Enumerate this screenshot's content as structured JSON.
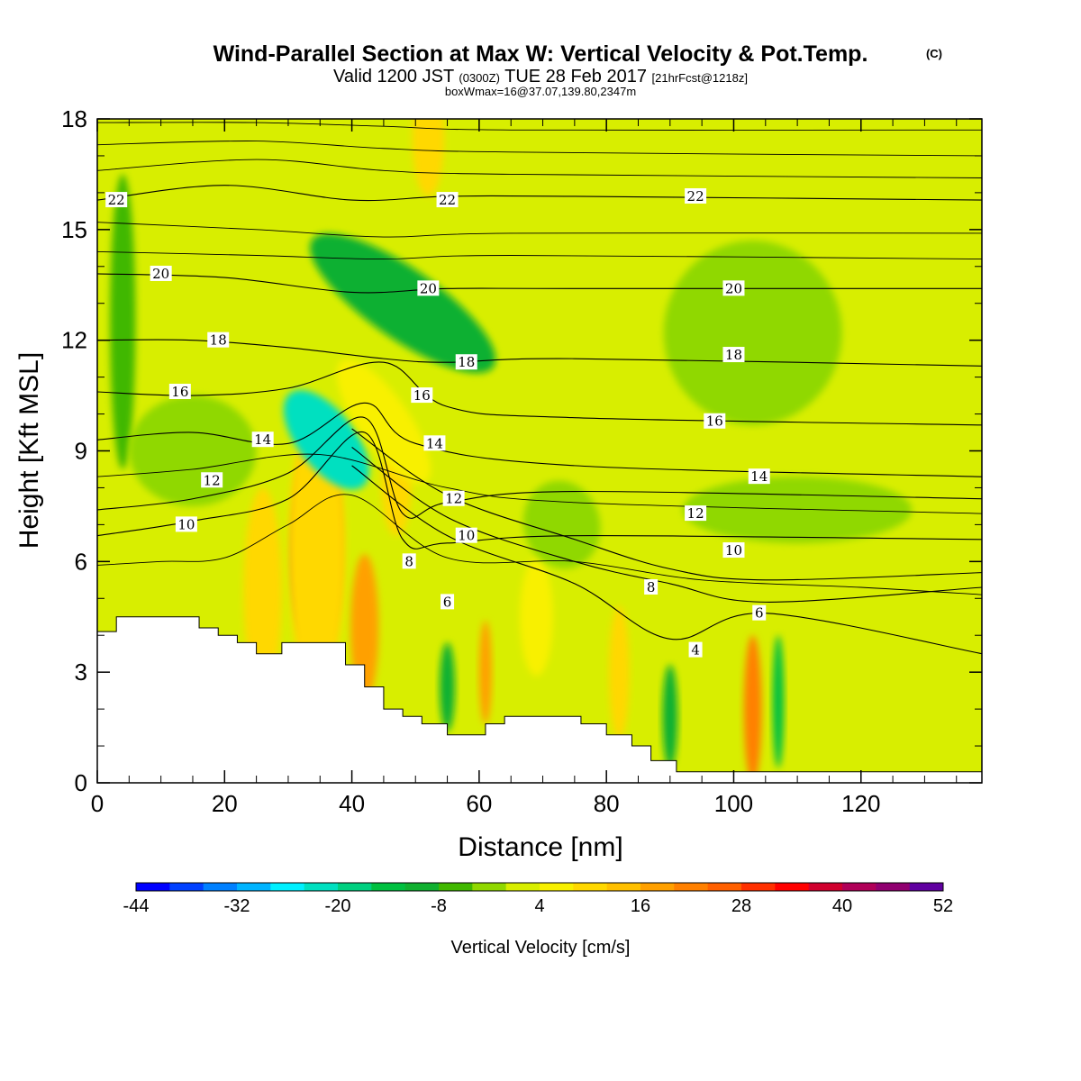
{
  "header": {
    "title_main": "Wind-Parallel Section at Max W: Vertical Velocity & Pot.Temp.",
    "title_copyright": "(C)",
    "valid_prefix": "Valid 1200 JST",
    "valid_utc": "(0300Z)",
    "valid_date": "TUE 28 Feb 2017",
    "forecast_tag": "[21hrFcst@1218z]",
    "box_info": "boxWmax=16@37.07,139.80,2347m"
  },
  "chart_data": {
    "type": "heatmap",
    "xlabel": "Distance [nm]",
    "ylabel": "Height [Kft MSL]",
    "xlim": [
      0,
      139
    ],
    "ylim": [
      0,
      18
    ],
    "x_ticks": [
      "0",
      "20",
      "40",
      "60",
      "80",
      "100",
      "120"
    ],
    "y_ticks": [
      "0",
      "3",
      "6",
      "9",
      "12",
      "15",
      "18"
    ],
    "x_tick_values": [
      0,
      20,
      40,
      60,
      80,
      100,
      120
    ],
    "y_tick_values": [
      0,
      3,
      6,
      9,
      12,
      15,
      18
    ],
    "background_color": "#d8ee00",
    "terrain_kft": [
      [
        0,
        4.1
      ],
      [
        3,
        4.1
      ],
      [
        3,
        4.5
      ],
      [
        16,
        4.5
      ],
      [
        16,
        4.2
      ],
      [
        19,
        4.2
      ],
      [
        19,
        4.0
      ],
      [
        22,
        4.0
      ],
      [
        22,
        3.8
      ],
      [
        25,
        3.8
      ],
      [
        25,
        3.5
      ],
      [
        29,
        3.5
      ],
      [
        29,
        3.8
      ],
      [
        39,
        3.8
      ],
      [
        39,
        3.2
      ],
      [
        42,
        3.2
      ],
      [
        42,
        2.6
      ],
      [
        45,
        2.6
      ],
      [
        45,
        2.0
      ],
      [
        48,
        2.0
      ],
      [
        48,
        1.8
      ],
      [
        51,
        1.8
      ],
      [
        51,
        1.6
      ],
      [
        55,
        1.6
      ],
      [
        55,
        1.3
      ],
      [
        61,
        1.3
      ],
      [
        61,
        1.6
      ],
      [
        64,
        1.6
      ],
      [
        64,
        1.8
      ],
      [
        76,
        1.8
      ],
      [
        76,
        1.6
      ],
      [
        80,
        1.6
      ],
      [
        80,
        1.3
      ],
      [
        84,
        1.3
      ],
      [
        84,
        1.0
      ],
      [
        87,
        1.0
      ],
      [
        87,
        0.6
      ],
      [
        91,
        0.6
      ],
      [
        91,
        0.3
      ],
      [
        139,
        0.3
      ]
    ],
    "w_features": [
      {
        "x": 33.5,
        "y": 6.1,
        "rx": 2.6,
        "ry": 2.2,
        "w": 50
      },
      {
        "x": 34.5,
        "y": 6.4,
        "rx": 3.6,
        "ry": 3.0,
        "w": 28
      },
      {
        "x": 34.5,
        "y": 6.3,
        "rx": 4.5,
        "ry": 3.8,
        "w": 10
      },
      {
        "x": 26,
        "y": 5.2,
        "rx": 3.0,
        "ry": 2.8,
        "w": 10
      },
      {
        "x": 42,
        "y": 4.2,
        "rx": 2.2,
        "ry": 2.0,
        "w": 16
      },
      {
        "x": 36,
        "y": 9.3,
        "rx": 4.5,
        "ry": 1.6,
        "w": -22,
        "rot": -38
      },
      {
        "x": 47,
        "y": 8.2,
        "rx": 2.4,
        "ry": 1.5,
        "w": 10
      },
      {
        "x": 45,
        "y": 9.8,
        "rx": 4.0,
        "ry": 2.0,
        "w": 4,
        "rot": -35
      },
      {
        "x": 52,
        "y": 17.5,
        "rx": 2.5,
        "ry": 1.6,
        "w": 10
      },
      {
        "x": 48,
        "y": 13.0,
        "rx": 5.5,
        "ry": 3.0,
        "w": -10,
        "rot": -55
      },
      {
        "x": 4,
        "y": 12.5,
        "rx": 2.0,
        "ry": 4.0,
        "w": -8
      },
      {
        "x": 55,
        "y": 2.6,
        "rx": 1.2,
        "ry": 1.2,
        "w": -12
      },
      {
        "x": 61,
        "y": 3.0,
        "rx": 1.0,
        "ry": 1.4,
        "w": 16
      },
      {
        "x": 69,
        "y": 4.5,
        "rx": 2.6,
        "ry": 1.6,
        "w": 4
      },
      {
        "x": 82,
        "y": 3.0,
        "rx": 1.6,
        "ry": 1.8,
        "w": 10
      },
      {
        "x": 90,
        "y": 1.8,
        "rx": 1.2,
        "ry": 1.4,
        "w": -10
      },
      {
        "x": 103,
        "y": 2.0,
        "rx": 1.4,
        "ry": 2.0,
        "w": 22
      },
      {
        "x": 107,
        "y": 2.2,
        "rx": 0.9,
        "ry": 1.8,
        "w": -16
      },
      {
        "x": 103,
        "y": 12.2,
        "rx": 14.0,
        "ry": 2.5,
        "w": -4
      },
      {
        "x": 110,
        "y": 7.4,
        "rx": 18.0,
        "ry": 0.9,
        "w": -4
      },
      {
        "x": 73,
        "y": 7.0,
        "rx": 6.0,
        "ry": 1.2,
        "w": -4,
        "rot": -15
      },
      {
        "x": 15,
        "y": 9.0,
        "rx": 10.0,
        "ry": 1.5,
        "w": -4
      }
    ],
    "theta_levels": [
      {
        "label": "4",
        "pts": [
          [
            40,
            8.6
          ],
          [
            55,
            6.7
          ],
          [
            75,
            5.4
          ],
          [
            90,
            3.9
          ],
          [
            105,
            4.6
          ],
          [
            139,
            3.5
          ]
        ]
      },
      {
        "label": "6",
        "pts": [
          [
            40,
            9.1
          ],
          [
            55,
            7.2
          ],
          [
            75,
            6.0
          ],
          [
            90,
            5.4
          ],
          [
            105,
            4.9
          ],
          [
            139,
            5.3
          ]
        ]
      },
      {
        "label": "8",
        "pts": [
          [
            40,
            9.6
          ],
          [
            55,
            7.8
          ],
          [
            75,
            6.6
          ],
          [
            90,
            5.8
          ],
          [
            105,
            5.5
          ],
          [
            139,
            5.7
          ]
        ]
      },
      {
        "label": "10",
        "pts": [
          [
            0,
            6.7
          ],
          [
            15,
            7.1
          ],
          [
            30,
            7.7
          ],
          [
            42,
            9.5
          ],
          [
            48,
            6.6
          ],
          [
            55,
            6.5
          ],
          [
            75,
            6.7
          ],
          [
            139,
            6.6
          ]
        ]
      },
      {
        "label": "12",
        "pts": [
          [
            0,
            7.4
          ],
          [
            15,
            7.7
          ],
          [
            30,
            8.4
          ],
          [
            42,
            9.9
          ],
          [
            48,
            7.3
          ],
          [
            55,
            7.6
          ],
          [
            75,
            7.9
          ],
          [
            139,
            7.7
          ]
        ]
      },
      {
        "label": "14",
        "pts": [
          [
            0,
            9.3
          ],
          [
            15,
            9.5
          ],
          [
            30,
            9.2
          ],
          [
            42,
            10.3
          ],
          [
            50,
            9.2
          ],
          [
            75,
            8.6
          ],
          [
            139,
            8.3
          ]
        ]
      },
      {
        "label": "16",
        "pts": [
          [
            0,
            10.6
          ],
          [
            15,
            10.5
          ],
          [
            30,
            10.7
          ],
          [
            45,
            11.4
          ],
          [
            55,
            10.2
          ],
          [
            75,
            9.9
          ],
          [
            139,
            9.7
          ]
        ]
      },
      {
        "label": "18",
        "pts": [
          [
            0,
            12.0
          ],
          [
            15,
            12.0
          ],
          [
            30,
            11.8
          ],
          [
            45,
            11.5
          ],
          [
            55,
            11.4
          ],
          [
            75,
            11.5
          ],
          [
            139,
            11.3
          ]
        ]
      },
      {
        "label": "20",
        "pts": [
          [
            0,
            13.8
          ],
          [
            20,
            13.7
          ],
          [
            40,
            13.3
          ],
          [
            55,
            13.4
          ],
          [
            75,
            13.4
          ],
          [
            139,
            13.4
          ]
        ]
      },
      {
        "label": "22",
        "pts": [
          [
            0,
            15.8
          ],
          [
            20,
            16.2
          ],
          [
            40,
            15.8
          ],
          [
            55,
            15.9
          ],
          [
            75,
            15.9
          ],
          [
            139,
            15.8
          ]
        ]
      }
    ],
    "theta_thin_levels": [
      {
        "pts": [
          [
            0,
            5.9
          ],
          [
            10,
            6.0
          ],
          [
            20,
            6.1
          ],
          [
            30,
            7.0
          ],
          [
            40,
            7.8
          ],
          [
            55,
            6.1
          ],
          [
            75,
            6.0
          ],
          [
            95,
            5.5
          ],
          [
            120,
            5.3
          ],
          [
            139,
            5.1
          ]
        ]
      },
      {
        "pts": [
          [
            0,
            8.3
          ],
          [
            15,
            8.5
          ],
          [
            35,
            8.9
          ],
          [
            55,
            8.0
          ],
          [
            75,
            7.6
          ],
          [
            139,
            7.3
          ]
        ]
      },
      {
        "pts": [
          [
            0,
            14.4
          ],
          [
            25,
            14.3
          ],
          [
            45,
            14.2
          ],
          [
            65,
            14.3
          ],
          [
            139,
            14.2
          ]
        ]
      },
      {
        "pts": [
          [
            0,
            15.2
          ],
          [
            25,
            15.0
          ],
          [
            45,
            14.8
          ],
          [
            65,
            14.9
          ],
          [
            139,
            14.9
          ]
        ]
      },
      {
        "pts": [
          [
            0,
            16.6
          ],
          [
            25,
            16.9
          ],
          [
            45,
            16.6
          ],
          [
            65,
            16.5
          ],
          [
            139,
            16.4
          ]
        ]
      },
      {
        "pts": [
          [
            0,
            17.3
          ],
          [
            25,
            17.4
          ],
          [
            45,
            17.2
          ],
          [
            65,
            17.1
          ],
          [
            139,
            17.0
          ]
        ]
      },
      {
        "pts": [
          [
            0,
            17.9
          ],
          [
            25,
            17.9
          ],
          [
            45,
            17.8
          ],
          [
            65,
            17.7
          ],
          [
            139,
            17.7
          ]
        ]
      }
    ],
    "contour_labels": [
      {
        "text": "22",
        "x": 3,
        "y": 15.8
      },
      {
        "text": "22",
        "x": 55,
        "y": 15.8
      },
      {
        "text": "22",
        "x": 94,
        "y": 15.9
      },
      {
        "text": "20",
        "x": 10,
        "y": 13.8
      },
      {
        "text": "20",
        "x": 52,
        "y": 13.4
      },
      {
        "text": "20",
        "x": 100,
        "y": 13.4
      },
      {
        "text": "18",
        "x": 19,
        "y": 12.0
      },
      {
        "text": "18",
        "x": 58,
        "y": 11.4
      },
      {
        "text": "18",
        "x": 100,
        "y": 11.6
      },
      {
        "text": "16",
        "x": 13,
        "y": 10.6
      },
      {
        "text": "16",
        "x": 51,
        "y": 10.5
      },
      {
        "text": "16",
        "x": 97,
        "y": 9.8
      },
      {
        "text": "14",
        "x": 26,
        "y": 9.3
      },
      {
        "text": "14",
        "x": 53,
        "y": 9.2
      },
      {
        "text": "14",
        "x": 104,
        "y": 8.3
      },
      {
        "text": "12",
        "x": 18,
        "y": 8.2
      },
      {
        "text": "12",
        "x": 56,
        "y": 7.7
      },
      {
        "text": "12",
        "x": 94,
        "y": 7.3
      },
      {
        "text": "10",
        "x": 14,
        "y": 7.0
      },
      {
        "text": "10",
        "x": 58,
        "y": 6.7
      },
      {
        "text": "10",
        "x": 100,
        "y": 6.3
      },
      {
        "text": "8",
        "x": 49,
        "y": 6.0
      },
      {
        "text": "8",
        "x": 87,
        "y": 5.3
      },
      {
        "text": "6",
        "x": 55,
        "y": 4.9
      },
      {
        "text": "6",
        "x": 104,
        "y": 4.6
      },
      {
        "text": "4",
        "x": 94,
        "y": 3.6
      }
    ]
  },
  "colorbar": {
    "title": "Vertical Velocity [cm/s]",
    "min": -44,
    "max": 52,
    "step": 4,
    "tick_labels": [
      "-44",
      "-32",
      "-20",
      "-8",
      "4",
      "16",
      "28",
      "40",
      "52"
    ],
    "colors": [
      "#0000ff",
      "#0040ff",
      "#0080ff",
      "#00b4ff",
      "#00f0ff",
      "#00e0c0",
      "#00d080",
      "#00c040",
      "#10b030",
      "#40b800",
      "#90d800",
      "#d8ee00",
      "#f8f000",
      "#ffd800",
      "#ffc000",
      "#ffa000",
      "#ff8000",
      "#ff6000",
      "#ff3000",
      "#ff0000",
      "#d0002e",
      "#b00058",
      "#900070",
      "#6000a0"
    ]
  }
}
